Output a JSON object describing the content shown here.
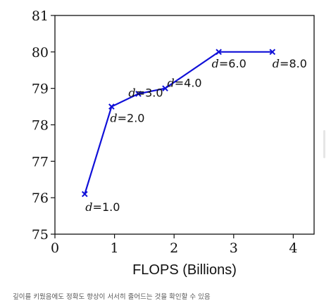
{
  "chart_data": {
    "type": "line",
    "title": "",
    "xlabel": "FLOPS (Billions)",
    "ylabel": "",
    "xlim": [
      0,
      4.35
    ],
    "ylim": [
      75,
      81
    ],
    "xticks": [
      "0",
      "1",
      "2",
      "3",
      "4"
    ],
    "yticks": [
      "75",
      "76",
      "77",
      "78",
      "79",
      "80",
      "81"
    ],
    "grid": false,
    "series": [
      {
        "color": "#1010d8",
        "marker": "x",
        "x": [
          0.5,
          0.95,
          1.4,
          1.85,
          2.75,
          3.65
        ],
        "y": [
          76.1,
          78.5,
          78.85,
          79.0,
          80.0,
          80.0
        ],
        "labels": [
          "d=1.0",
          "d=2.0",
          "d=3.0",
          "d=4.0",
          "d=6.0",
          "d=8.0"
        ]
      }
    ]
  },
  "caption": "깊이를 키웠음에도 정확도 향상이 서서히 줄어드는 것을 확인할 수 있음"
}
